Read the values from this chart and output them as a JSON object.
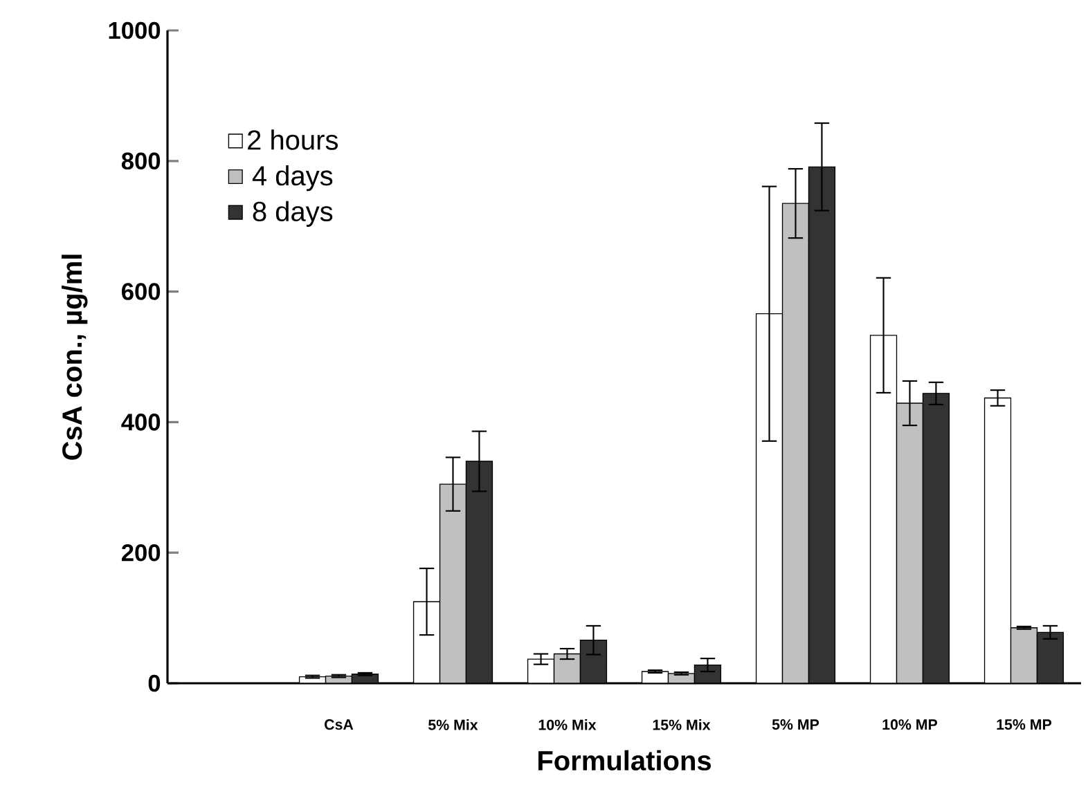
{
  "chart_data": {
    "type": "bar",
    "xlabel": "Formulations",
    "ylabel": "CsA con., µg/ml",
    "categories": [
      null,
      "CsA",
      "5% Mix",
      "10% Mix",
      "15% Mix",
      "5% MP",
      "10% MP",
      "15% MP"
    ],
    "series": [
      {
        "name": "2 hours",
        "color": "#ffffff",
        "values": [
          null,
          10,
          125,
          37,
          18,
          566,
          533,
          437
        ],
        "errors": [
          null,
          2,
          51,
          8,
          2,
          195,
          88,
          12
        ]
      },
      {
        "name": "4 days",
        "color": "#c0c0c0",
        "values": [
          null,
          11,
          305,
          45,
          15,
          735,
          429,
          85
        ],
        "errors": [
          null,
          2,
          41,
          8,
          2,
          53,
          34,
          2
        ]
      },
      {
        "name": "8 days",
        "color": "#333333",
        "values": [
          null,
          14,
          340,
          66,
          28,
          791,
          444,
          78
        ],
        "errors": [
          null,
          2,
          46,
          22,
          10,
          67,
          17,
          10
        ]
      }
    ],
    "ylim": [
      0,
      1000
    ],
    "yticks": [
      0,
      200,
      400,
      600,
      800,
      1000
    ],
    "grid": false,
    "legend": "top left"
  }
}
